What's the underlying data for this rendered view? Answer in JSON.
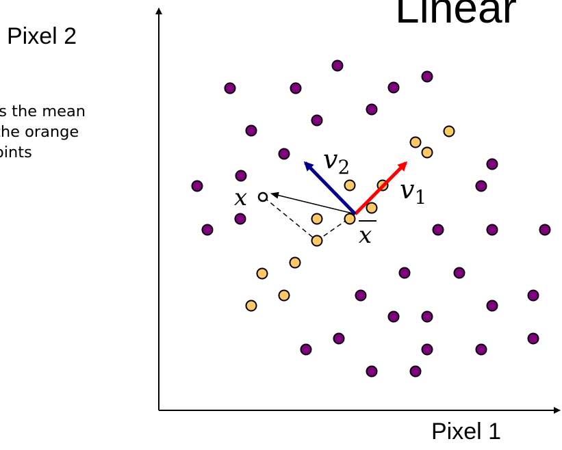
{
  "slide": {
    "title_fragment": "Linear"
  },
  "axes": {
    "x_label": "Pixel 1",
    "y_label": "Pixel 2"
  },
  "caption": {
    "line1": "is the mean",
    "line2": "the orange",
    "line3": "oints"
  },
  "labels": {
    "v1_symbol": "v",
    "v1_subscript": "1",
    "v2_symbol": "v",
    "v2_subscript": "2",
    "x_symbol": "x",
    "xbar_symbol": "x"
  },
  "colors": {
    "purple_point": "#800080",
    "orange_point": "#FFC966",
    "v1_arrow": "#FF0000",
    "v2_arrow": "#00008B",
    "axis": "#000000"
  },
  "points": {
    "purple": [
      [
        493,
        96
      ],
      [
        336,
        129
      ],
      [
        432,
        129
      ],
      [
        575,
        128
      ],
      [
        624,
        112
      ],
      [
        543,
        160
      ],
      [
        463,
        176
      ],
      [
        367,
        191
      ],
      [
        415,
        225
      ],
      [
        352,
        257
      ],
      [
        288,
        272
      ],
      [
        719,
        240
      ],
      [
        703,
        272
      ],
      [
        351,
        320
      ],
      [
        303,
        336
      ],
      [
        640,
        336
      ],
      [
        719,
        336
      ],
      [
        796,
        336
      ],
      [
        591,
        399
      ],
      [
        671,
        399
      ],
      [
        527,
        432
      ],
      [
        719,
        447
      ],
      [
        779,
        432
      ],
      [
        575,
        463
      ],
      [
        624,
        463
      ],
      [
        495,
        495
      ],
      [
        447,
        511
      ],
      [
        624,
        511
      ],
      [
        703,
        511
      ],
      [
        779,
        495
      ],
      [
        543,
        543
      ],
      [
        607,
        543
      ]
    ],
    "orange": [
      [
        656,
        192
      ],
      [
        607,
        208
      ],
      [
        624,
        223
      ],
      [
        511,
        271
      ],
      [
        559,
        271
      ],
      [
        543,
        304
      ],
      [
        463,
        320
      ],
      [
        511,
        320
      ],
      [
        463,
        352
      ],
      [
        431,
        384
      ],
      [
        383,
        400
      ],
      [
        415,
        432
      ],
      [
        367,
        447
      ]
    ]
  }
}
